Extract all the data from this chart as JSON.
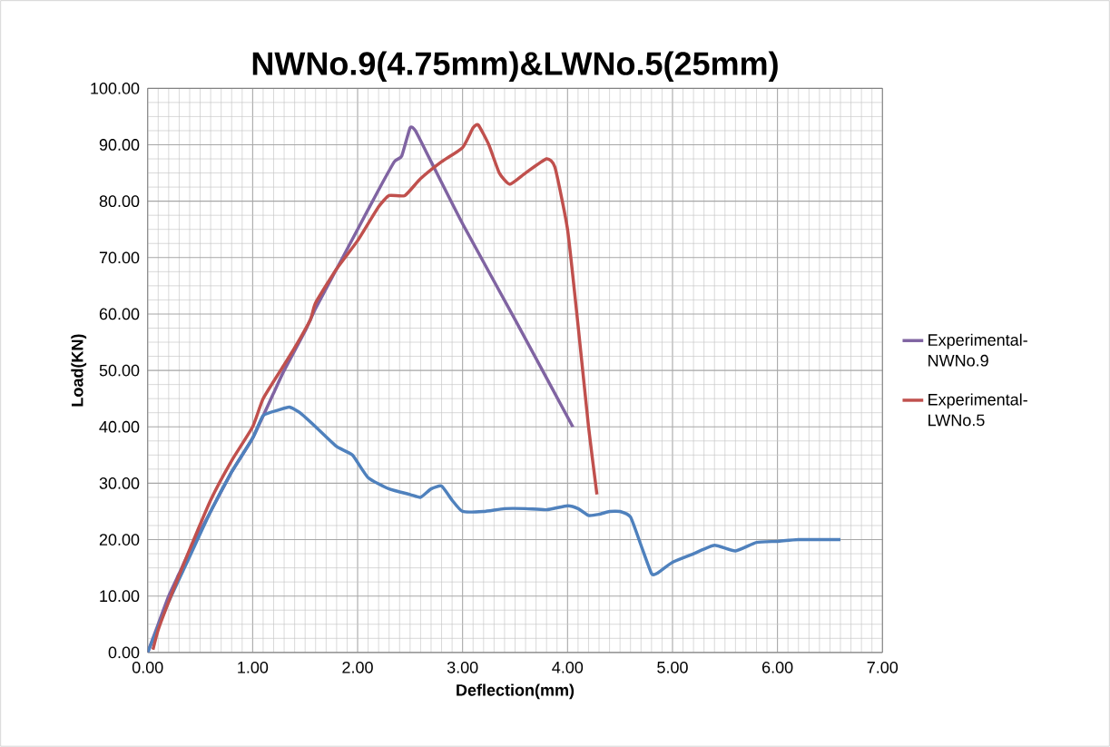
{
  "chart_data": {
    "type": "line",
    "title": "NWNo.9(4.75mm)&LWNo.5(25mm)",
    "xlabel": "Deflection(mm)",
    "ylabel": "Load(KN)",
    "xlim": [
      0,
      7
    ],
    "ylim": [
      0,
      100
    ],
    "xticks": [
      {
        "value": 0,
        "label": "0.00"
      },
      {
        "value": 1,
        "label": "1.00"
      },
      {
        "value": 2,
        "label": "2.00"
      },
      {
        "value": 3,
        "label": "3.00"
      },
      {
        "value": 4,
        "label": "4.00"
      },
      {
        "value": 5,
        "label": "5.00"
      },
      {
        "value": 6,
        "label": "6.00"
      },
      {
        "value": 7,
        "label": "7.00"
      }
    ],
    "yticks": [
      {
        "value": 0,
        "label": "0.00"
      },
      {
        "value": 10,
        "label": "10.00"
      },
      {
        "value": 20,
        "label": "20.00"
      },
      {
        "value": 30,
        "label": "30.00"
      },
      {
        "value": 40,
        "label": "40.00"
      },
      {
        "value": 50,
        "label": "50.00"
      },
      {
        "value": 60,
        "label": "60.00"
      },
      {
        "value": 70,
        "label": "70.00"
      },
      {
        "value": 80,
        "label": "80.00"
      },
      {
        "value": 90,
        "label": "90.00"
      },
      {
        "value": 100,
        "label": "100.00"
      }
    ],
    "grid": true,
    "legend": "right",
    "marker": "none",
    "line_style": "solid",
    "series": [
      {
        "name": "Experimental-NWNo.9",
        "color": "#8064a2",
        "x": [
          0,
          0.1,
          0.2,
          0.3,
          0.4,
          0.6,
          0.8,
          1.0,
          1.2,
          1.3,
          1.5,
          1.6,
          1.8,
          2.0,
          2.2,
          2.35,
          2.42,
          2.5,
          2.55,
          2.7,
          3.0,
          3.5,
          4.05
        ],
        "values": [
          0,
          5,
          10,
          14,
          18,
          25,
          32,
          38,
          46,
          50,
          57,
          61,
          68,
          75,
          82,
          87,
          88,
          93,
          92.5,
          87,
          76,
          59,
          40
        ]
      },
      {
        "color": "#4f81bd",
        "x": [
          0,
          0.2,
          0.4,
          0.6,
          0.8,
          1.0,
          1.1,
          1.25,
          1.35,
          1.45,
          1.6,
          1.8,
          1.95,
          2.1,
          2.3,
          2.5,
          2.6,
          2.7,
          2.8,
          2.9,
          3.0,
          3.2,
          3.4,
          3.6,
          3.8,
          4.0,
          4.1,
          4.2,
          4.3,
          4.4,
          4.5,
          4.6,
          4.7,
          4.8,
          4.85,
          5.0,
          5.2,
          5.4,
          5.6,
          5.8,
          6.0,
          6.2,
          6.6
        ],
        "values": [
          0,
          9,
          17,
          25,
          32,
          38,
          42,
          43,
          43.5,
          42.5,
          40,
          36.5,
          35,
          31,
          29,
          28,
          27.5,
          29,
          29.5,
          27,
          25,
          25,
          25.5,
          25.5,
          25.3,
          26,
          25.5,
          24.3,
          24.5,
          25,
          25,
          24,
          19,
          14,
          14,
          16,
          17.5,
          19,
          18,
          19.5,
          19.7,
          20,
          20
        ]
      },
      {
        "name": "Experimental-LWNo.5",
        "color": "#c0504d",
        "x": [
          0.05,
          0.1,
          0.2,
          0.35,
          0.6,
          0.8,
          1.0,
          1.1,
          1.3,
          1.4,
          1.55,
          1.6,
          1.8,
          2.0,
          2.2,
          2.3,
          2.45,
          2.6,
          2.8,
          3.0,
          3.1,
          3.15,
          3.25,
          3.35,
          3.45,
          3.6,
          3.8,
          3.88,
          4.0,
          4.1,
          4.2,
          4.28
        ],
        "values": [
          0.5,
          4,
          9,
          16,
          27,
          34,
          40,
          45,
          51,
          54,
          59,
          62,
          68,
          73,
          79,
          81,
          81,
          84,
          87,
          89.5,
          93,
          93.5,
          90,
          85,
          83,
          85,
          87.5,
          86,
          75,
          58,
          40,
          28
        ]
      }
    ]
  }
}
